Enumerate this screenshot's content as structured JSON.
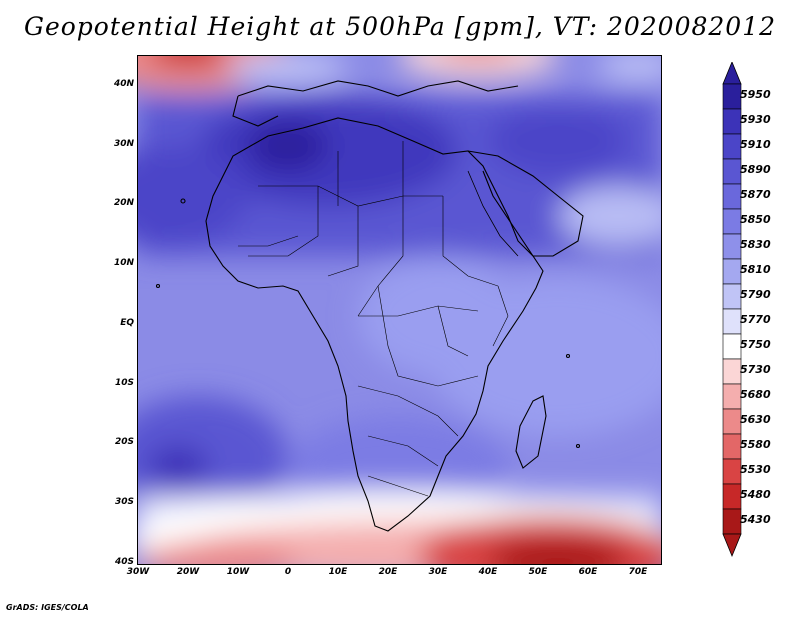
{
  "title": "Geopotential Height at 500hPa [gpm], VT: 2020082012",
  "credit": "GrADS: IGES/COLA",
  "map": {
    "region": "Africa",
    "variable": "Geopotential Height at 500hPa",
    "units": "gpm",
    "lat_labels": [
      "40N",
      "30N",
      "20N",
      "10N",
      "EQ",
      "10S",
      "20S",
      "30S",
      "40S"
    ],
    "lon_labels": [
      "30W",
      "20W",
      "10W",
      "0",
      "10E",
      "20E",
      "30E",
      "40E",
      "50E",
      "60E",
      "70E"
    ]
  },
  "colorbar": {
    "levels": [
      "5950",
      "5930",
      "5910",
      "5890",
      "5870",
      "5850",
      "5830",
      "5810",
      "5790",
      "5770",
      "5750",
      "5730",
      "5680",
      "5630",
      "5580",
      "5530",
      "5480",
      "5430"
    ],
    "colors": [
      "#2a1f9c",
      "#3c33b8",
      "#4b45c8",
      "#5a56d2",
      "#6a68dc",
      "#7b7be4",
      "#8e90ea",
      "#a4a8f0",
      "#c0c4f6",
      "#dfe1fb",
      "#ffffff",
      "#fbd6d6",
      "#f4aeae",
      "#ec8a8a",
      "#e36767",
      "#d94444",
      "#c72828",
      "#a81818"
    ]
  }
}
